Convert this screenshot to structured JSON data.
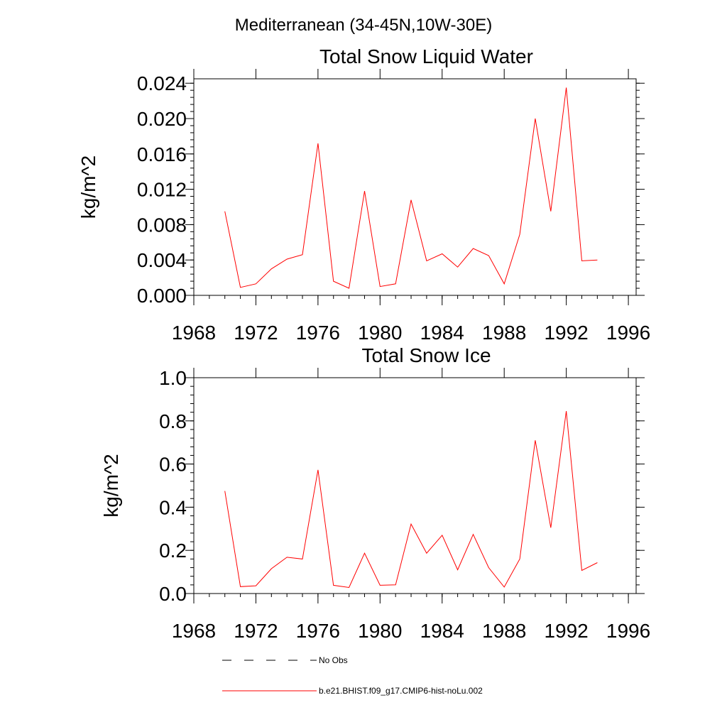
{
  "page_title": "Mediterranean (34-45N,10W-30E)",
  "legend": {
    "items": [
      {
        "label": "No Obs",
        "style": "dashed",
        "color": "#000000"
      },
      {
        "label": "b.e21.BHIST.f09_g17.CMIP6-hist-noLu.002",
        "style": "solid",
        "color": "#ff0000"
      }
    ]
  },
  "chart_data": [
    {
      "type": "line",
      "title": "Total Snow Liquid Water",
      "xlabel": "",
      "ylabel": "kg/m^2",
      "xlim": [
        1968,
        1996.5
      ],
      "ylim": [
        0,
        0.0245
      ],
      "xticks": [
        1968,
        1972,
        1976,
        1980,
        1984,
        1988,
        1992,
        1996
      ],
      "xtick_labels": [
        "1968",
        "1972",
        "1976",
        "1980",
        "1984",
        "1988",
        "1992",
        "1996"
      ],
      "yticks": [
        0,
        0.004,
        0.008,
        0.012,
        0.016,
        0.02,
        0.024
      ],
      "ytick_labels": [
        "0.000",
        "0.004",
        "0.008",
        "0.012",
        "0.016",
        "0.020",
        "0.024"
      ],
      "grid": false,
      "series": [
        {
          "color": "#ff0000",
          "x": [
            1970,
            1971,
            1972,
            1973,
            1974,
            1975,
            1976,
            1977,
            1978,
            1979,
            1980,
            1981,
            1982,
            1983,
            1984,
            1985,
            1986,
            1987,
            1988,
            1989,
            1990,
            1991,
            1992,
            1993,
            1994
          ],
          "values": [
            0.0095,
            0.0009,
            0.0013,
            0.003,
            0.0041,
            0.0046,
            0.0172,
            0.0016,
            0.0008,
            0.0118,
            0.001,
            0.0013,
            0.0108,
            0.0039,
            0.0047,
            0.0032,
            0.0053,
            0.0045,
            0.0013,
            0.0069,
            0.02,
            0.0095,
            0.0235,
            0.0039,
            0.004
          ]
        }
      ]
    },
    {
      "type": "line",
      "title": "Total Snow Ice",
      "xlabel": "",
      "ylabel": "kg/m^2",
      "xlim": [
        1968,
        1996.5
      ],
      "ylim": [
        0,
        1.0
      ],
      "xticks": [
        1968,
        1972,
        1976,
        1980,
        1984,
        1988,
        1992,
        1996
      ],
      "xtick_labels": [
        "1968",
        "1972",
        "1976",
        "1980",
        "1984",
        "1988",
        "1992",
        "1996"
      ],
      "yticks": [
        0,
        0.2,
        0.4,
        0.6,
        0.8,
        1.0
      ],
      "ytick_labels": [
        "0.0",
        "0.2",
        "0.4",
        "0.6",
        "0.8",
        "1.0"
      ],
      "grid": false,
      "series": [
        {
          "color": "#ff0000",
          "x": [
            1970,
            1971,
            1972,
            1973,
            1974,
            1975,
            1976,
            1977,
            1978,
            1979,
            1980,
            1981,
            1982,
            1983,
            1984,
            1985,
            1986,
            1987,
            1988,
            1989,
            1990,
            1991,
            1992,
            1993,
            1994
          ],
          "values": [
            0.475,
            0.032,
            0.036,
            0.115,
            0.168,
            0.16,
            0.573,
            0.038,
            0.028,
            0.187,
            0.038,
            0.04,
            0.322,
            0.187,
            0.27,
            0.11,
            0.274,
            0.12,
            0.03,
            0.16,
            0.71,
            0.305,
            0.845,
            0.107,
            0.143
          ]
        }
      ]
    }
  ]
}
